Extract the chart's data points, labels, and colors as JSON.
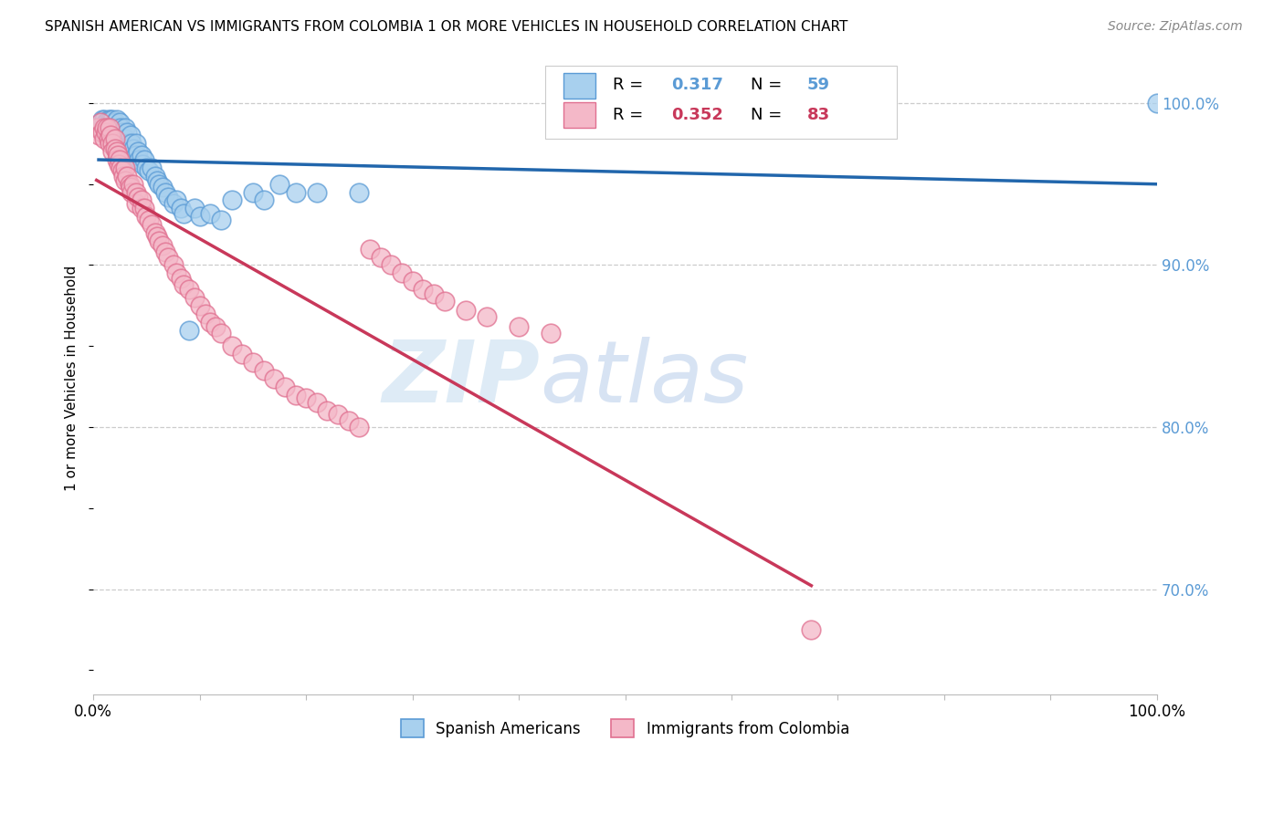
{
  "title": "SPANISH AMERICAN VS IMMIGRANTS FROM COLOMBIA 1 OR MORE VEHICLES IN HOUSEHOLD CORRELATION CHART",
  "source": "Source: ZipAtlas.com",
  "ylabel": "1 or more Vehicles in Household",
  "xlim": [
    0.0,
    1.0
  ],
  "ylim": [
    0.635,
    1.025
  ],
  "yticks": [
    0.7,
    0.8,
    0.9,
    1.0
  ],
  "ytick_labels": [
    "70.0%",
    "80.0%",
    "90.0%",
    "100.0%"
  ],
  "xticks": [
    0.0,
    0.1,
    0.2,
    0.3,
    0.4,
    0.5,
    0.6,
    0.7,
    0.8,
    0.9,
    1.0
  ],
  "xtick_labels": [
    "0.0%",
    "",
    "",
    "",
    "",
    "",
    "",
    "",
    "",
    "",
    "100.0%"
  ],
  "blue_color": "#a8d0ee",
  "blue_edge_color": "#5b9bd5",
  "pink_color": "#f4b8c8",
  "pink_edge_color": "#e07090",
  "trend_blue_color": "#2166ac",
  "trend_pink_color": "#c8385a",
  "R_blue": 0.317,
  "N_blue": 59,
  "R_pink": 0.352,
  "N_pink": 83,
  "watermark_zip": "ZIP",
  "watermark_atlas": "atlas",
  "legend_label_blue": "Spanish Americans",
  "legend_label_pink": "Immigrants from Colombia",
  "blue_x": [
    0.005,
    0.008,
    0.01,
    0.012,
    0.013,
    0.014,
    0.015,
    0.016,
    0.016,
    0.018,
    0.02,
    0.02,
    0.022,
    0.022,
    0.023,
    0.025,
    0.026,
    0.027,
    0.028,
    0.03,
    0.03,
    0.032,
    0.033,
    0.035,
    0.036,
    0.038,
    0.04,
    0.04,
    0.042,
    0.043,
    0.045,
    0.046,
    0.048,
    0.05,
    0.052,
    0.055,
    0.058,
    0.06,
    0.062,
    0.065,
    0.068,
    0.07,
    0.075,
    0.078,
    0.082,
    0.085,
    0.09,
    0.095,
    0.1,
    0.11,
    0.12,
    0.13,
    0.15,
    0.16,
    0.175,
    0.19,
    0.21,
    0.25,
    1.0
  ],
  "blue_y": [
    0.985,
    0.99,
    0.99,
    0.988,
    0.985,
    0.99,
    0.988,
    0.99,
    0.985,
    0.99,
    0.985,
    0.988,
    0.99,
    0.985,
    0.98,
    0.988,
    0.985,
    0.982,
    0.978,
    0.985,
    0.978,
    0.982,
    0.975,
    0.98,
    0.975,
    0.972,
    0.975,
    0.968,
    0.97,
    0.965,
    0.968,
    0.962,
    0.965,
    0.96,
    0.958,
    0.96,
    0.955,
    0.952,
    0.95,
    0.948,
    0.945,
    0.942,
    0.938,
    0.94,
    0.935,
    0.932,
    0.86,
    0.935,
    0.93,
    0.932,
    0.928,
    0.94,
    0.945,
    0.94,
    0.95,
    0.945,
    0.945,
    0.945,
    1.0
  ],
  "pink_x": [
    0.003,
    0.005,
    0.007,
    0.008,
    0.01,
    0.01,
    0.012,
    0.013,
    0.014,
    0.015,
    0.015,
    0.016,
    0.018,
    0.018,
    0.02,
    0.02,
    0.022,
    0.022,
    0.023,
    0.024,
    0.025,
    0.026,
    0.027,
    0.028,
    0.03,
    0.03,
    0.032,
    0.034,
    0.035,
    0.036,
    0.038,
    0.04,
    0.04,
    0.042,
    0.045,
    0.045,
    0.048,
    0.05,
    0.052,
    0.055,
    0.058,
    0.06,
    0.062,
    0.065,
    0.068,
    0.07,
    0.075,
    0.078,
    0.082,
    0.085,
    0.09,
    0.095,
    0.1,
    0.105,
    0.11,
    0.115,
    0.12,
    0.13,
    0.14,
    0.15,
    0.16,
    0.17,
    0.18,
    0.19,
    0.2,
    0.21,
    0.22,
    0.23,
    0.24,
    0.25,
    0.26,
    0.27,
    0.28,
    0.29,
    0.3,
    0.31,
    0.32,
    0.33,
    0.35,
    0.37,
    0.4,
    0.43,
    0.675
  ],
  "pink_y": [
    0.985,
    0.98,
    0.988,
    0.982,
    0.985,
    0.978,
    0.982,
    0.985,
    0.978,
    0.985,
    0.975,
    0.98,
    0.975,
    0.97,
    0.978,
    0.972,
    0.97,
    0.965,
    0.968,
    0.962,
    0.965,
    0.96,
    0.958,
    0.955,
    0.96,
    0.952,
    0.955,
    0.95,
    0.948,
    0.945,
    0.95,
    0.945,
    0.938,
    0.942,
    0.935,
    0.94,
    0.935,
    0.93,
    0.928,
    0.925,
    0.92,
    0.918,
    0.915,
    0.912,
    0.908,
    0.905,
    0.9,
    0.895,
    0.892,
    0.888,
    0.885,
    0.88,
    0.875,
    0.87,
    0.865,
    0.862,
    0.858,
    0.85,
    0.845,
    0.84,
    0.835,
    0.83,
    0.825,
    0.82,
    0.818,
    0.815,
    0.81,
    0.808,
    0.804,
    0.8,
    0.91,
    0.905,
    0.9,
    0.895,
    0.89,
    0.885,
    0.882,
    0.878,
    0.872,
    0.868,
    0.862,
    0.858,
    0.675
  ]
}
